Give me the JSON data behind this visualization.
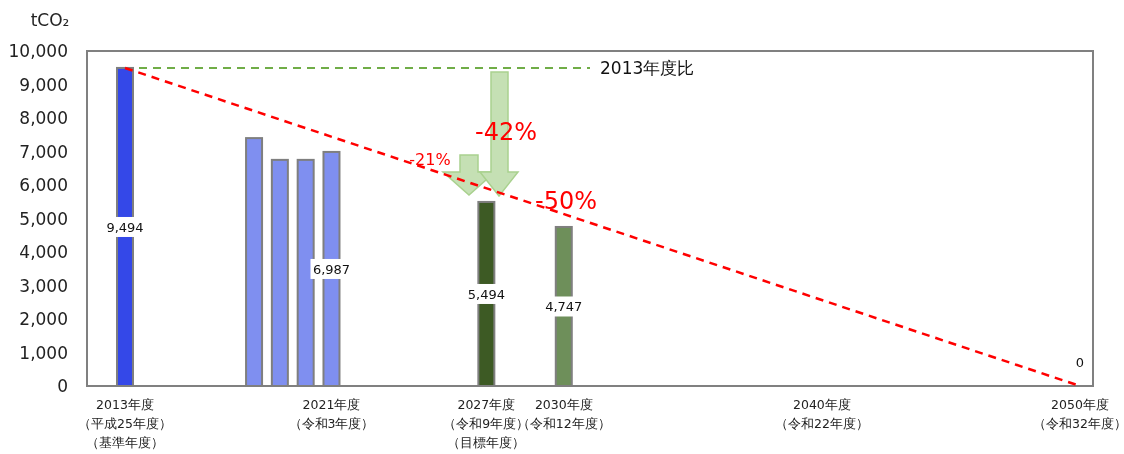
{
  "chart_data": {
    "type": "bar",
    "ylabel": "tCO₂",
    "categories": [
      "2013年度（平成25年度）（基準年度）",
      null,
      null,
      null,
      null,
      null,
      null,
      null,
      "2021年度（令和3年度）",
      null,
      null,
      null,
      null,
      null,
      "2027年度（令和9年度）（目標年度）",
      null,
      null,
      "2030年度（令和12年度）",
      null,
      null,
      null,
      null,
      null,
      null,
      null,
      null,
      null,
      "2040年度（令和22年度）",
      null,
      null,
      null,
      null,
      null,
      null,
      null,
      null,
      null,
      "2050年度（令和32年度）"
    ],
    "series": [
      {
        "values": [
          9494,
          null,
          null,
          null,
          null,
          7400,
          6750,
          6750,
          6987,
          null,
          null,
          null,
          null,
          null,
          5494,
          null,
          null,
          4747,
          null,
          null,
          null,
          null,
          null,
          null,
          null,
          null,
          null,
          null,
          null,
          null,
          null,
          null,
          null,
          null,
          null,
          null,
          null,
          0
        ],
        "colors": [
          "#3448e8",
          null,
          null,
          null,
          null,
          "#7f8ff0",
          "#7f8ff0",
          "#7f8ff0",
          "#7f8ff0",
          null,
          null,
          null,
          null,
          null,
          "#3d5a24",
          null,
          null,
          "#6e8f5a",
          null,
          null,
          null,
          null,
          null,
          null,
          null,
          null,
          null,
          null,
          null,
          null,
          null,
          null,
          null,
          null,
          null,
          null,
          null,
          "#3448e8"
        ],
        "value_labels": [
          "9,494",
          null,
          null,
          null,
          null,
          null,
          null,
          null,
          "6,987",
          null,
          null,
          null,
          null,
          null,
          "5,494",
          null,
          null,
          "4,747",
          null,
          null,
          null,
          null,
          null,
          null,
          null,
          null,
          null,
          null,
          null,
          null,
          null,
          null,
          null,
          null,
          null,
          null,
          null,
          "0"
        ]
      },
      {
        "type": "line",
        "color": "#ff0000",
        "line_style": "dashed",
        "x": [
          "2013年度（平成25年度）（基準年度）",
          "2050年度（令和32年度）"
        ],
        "values": [
          9494,
          0
        ]
      }
    ],
    "ylim": [
      0,
      10000
    ],
    "yticks": [
      0,
      {
        "value": 1000,
        "label": "1,000"
      },
      {
        "value": 2000,
        "label": "2,000"
      },
      {
        "value": 3000,
        "label": "3,000"
      },
      {
        "value": 4000,
        "label": "4,000"
      },
      {
        "value": 5000,
        "label": "5,000"
      },
      {
        "value": 6000,
        "label": "6,000"
      },
      {
        "value": 7000,
        "label": "7,000"
      },
      {
        "value": 8000,
        "label": "8,000"
      },
      {
        "value": 9000,
        "label": "9,000"
      },
      {
        "value": 10000,
        "label": "10,000"
      }
    ],
    "ref_lines": [
      {
        "axis": "y",
        "value": 9494,
        "label": "2013年度比",
        "color": "#70ad47",
        "line_style": "dashed"
      }
    ],
    "annotations": [
      "-21%",
      "-42%",
      "-50%"
    ],
    "grid": false
  }
}
